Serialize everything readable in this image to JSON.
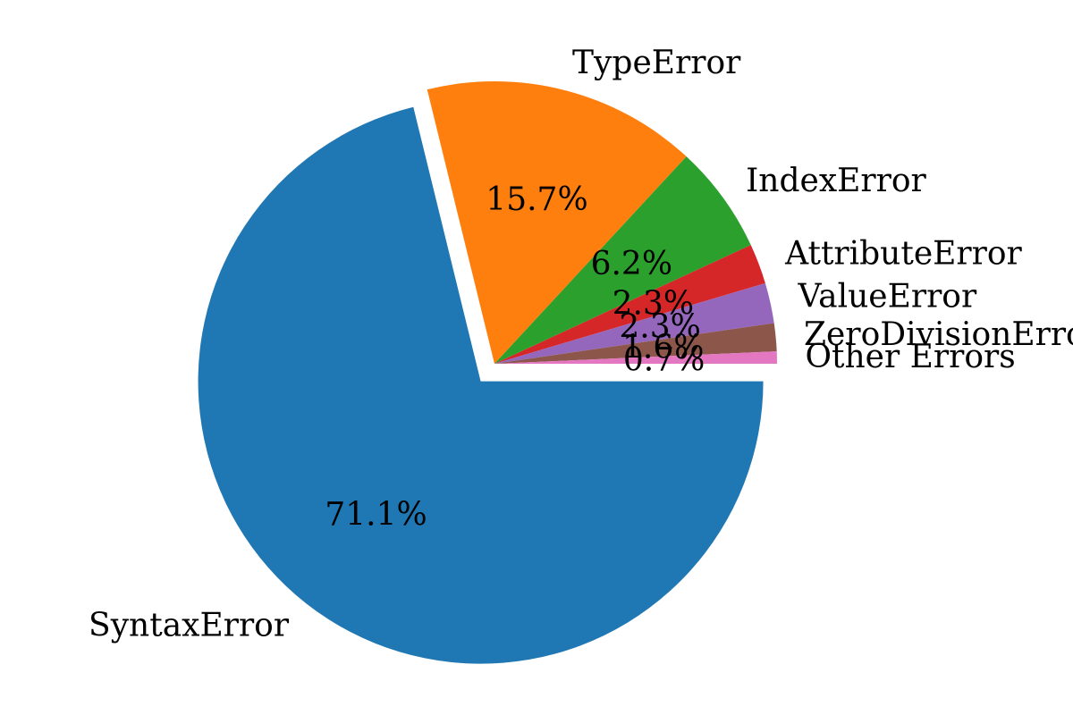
{
  "chart_data": {
    "type": "pie",
    "title": "",
    "start_angle_deg": 0,
    "direction": "clockwise",
    "exploded": [
      "SyntaxError"
    ],
    "slices": [
      {
        "label": "SyntaxError",
        "value": 71.1,
        "pct_label": "71.1%",
        "color": "#1f77b4"
      },
      {
        "label": "TypeError",
        "value": 15.7,
        "pct_label": "15.7%",
        "color": "#ff7f0e"
      },
      {
        "label": "IndexError",
        "value": 6.2,
        "pct_label": "6.2%",
        "color": "#2ca02c"
      },
      {
        "label": "AttributeError",
        "value": 2.3,
        "pct_label": "2.3%",
        "color": "#d62728"
      },
      {
        "label": "ValueError",
        "value": 2.3,
        "pct_label": "2.3%",
        "color": "#9467bd"
      },
      {
        "label": "ZeroDivisionError",
        "value": 1.6,
        "pct_label": "1.6%",
        "color": "#8c564b"
      },
      {
        "label": "Other Errors",
        "value": 0.7,
        "pct_label": "0.7%",
        "color": "#e377c2"
      }
    ]
  }
}
